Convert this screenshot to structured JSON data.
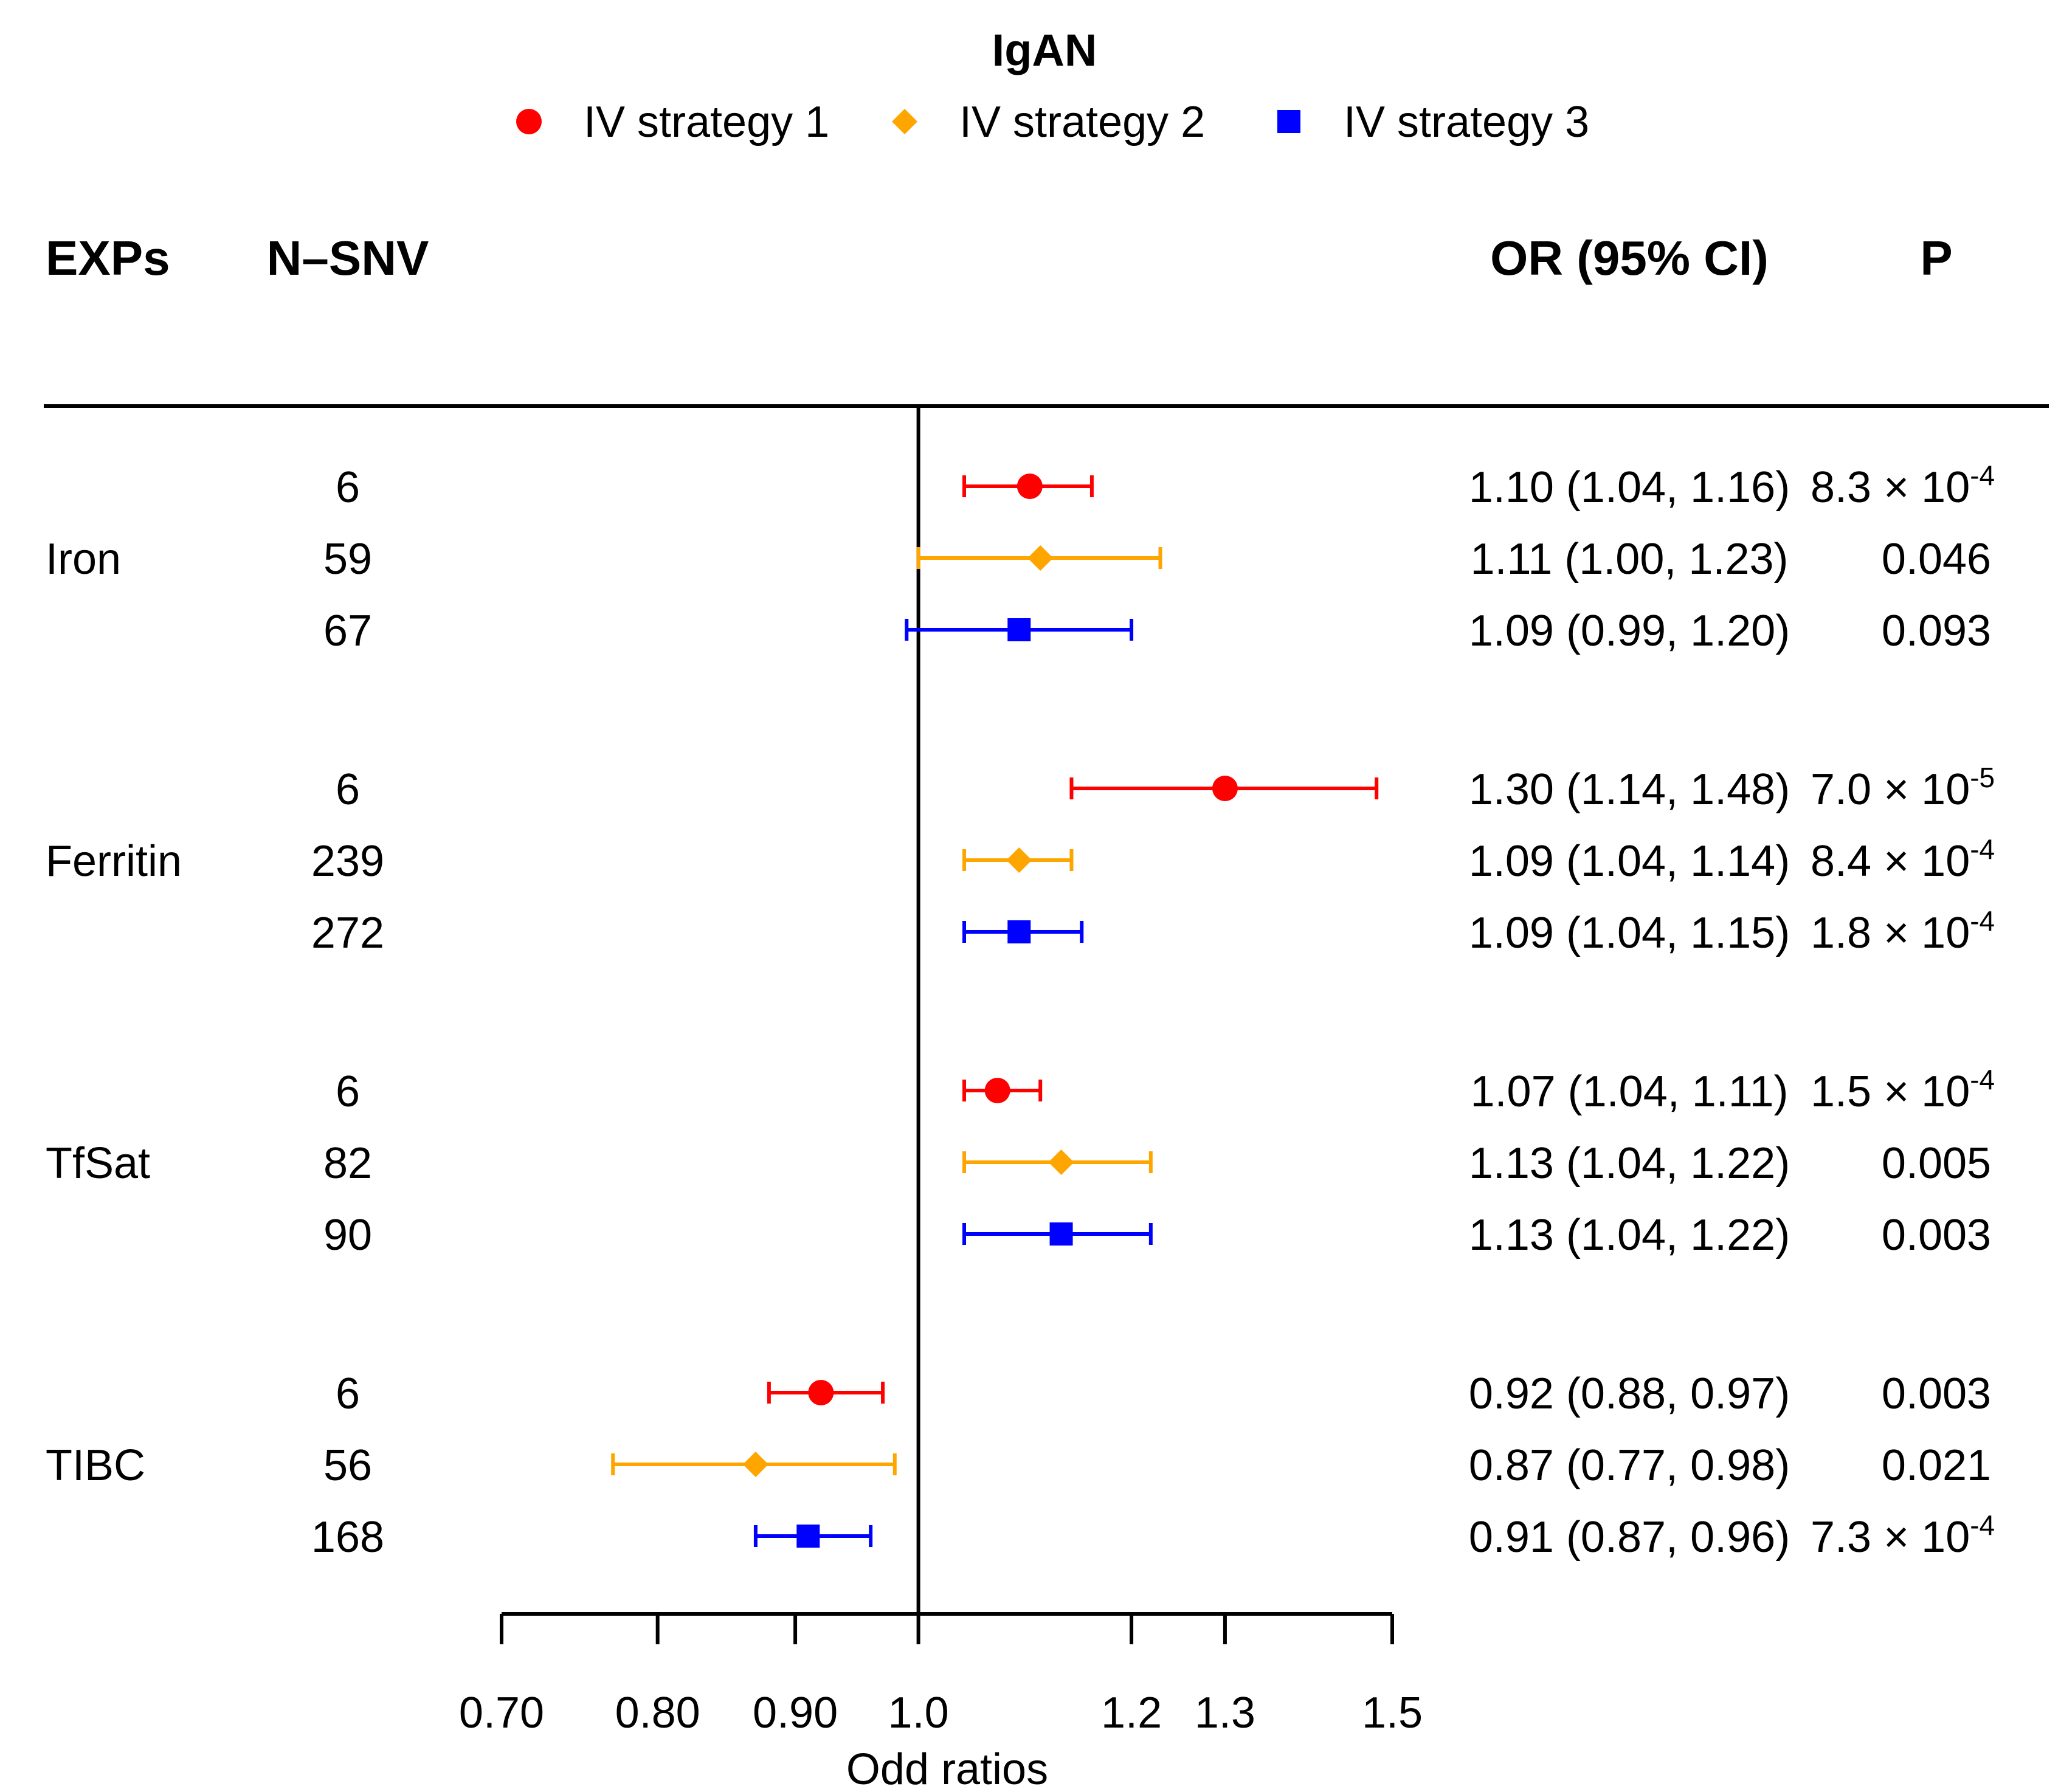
{
  "chart_data": {
    "type": "forest",
    "title": "IgAN",
    "legend": {
      "placement": "top-center",
      "entries": [
        {
          "name": "IV strategy 1",
          "color": "#ff0000",
          "marker": "circle"
        },
        {
          "name": "IV strategy 2",
          "color": "#ffa500",
          "marker": "diamond"
        },
        {
          "name": "IV strategy 3",
          "color": "#0000ff",
          "marker": "square"
        }
      ]
    },
    "headers": {
      "exposure": "EXPs",
      "n_snv": "N–SNV",
      "or_ci": "OR (95% CI)",
      "p": "P"
    },
    "xaxis": {
      "label": "Odd ratios",
      "scale": "log",
      "range": [
        0.7,
        1.5
      ],
      "reference": 1.0,
      "ticks": [
        {
          "value": 0.7,
          "label": "0.70"
        },
        {
          "value": 0.8,
          "label": "0.80"
        },
        {
          "value": 0.9,
          "label": "0.90"
        },
        {
          "value": 1.0,
          "label": "1.0"
        },
        {
          "value": 1.2,
          "label": "1.2"
        },
        {
          "value": 1.3,
          "label": "1.3"
        },
        {
          "value": 1.5,
          "label": "1.5"
        }
      ]
    },
    "groups": [
      {
        "exposure": "Iron",
        "rows": [
          {
            "strategy": 1,
            "n": "6",
            "or": 1.1,
            "lo": 1.04,
            "hi": 1.16,
            "or_text": "1.10 (1.04, 1.16)",
            "p_text": "8.3 × 10",
            "p_exp": "-4"
          },
          {
            "strategy": 2,
            "n": "59",
            "or": 1.11,
            "lo": 1.0,
            "hi": 1.23,
            "or_text": "1.11 (1.00, 1.23)",
            "p_text": "0.046",
            "p_exp": ""
          },
          {
            "strategy": 3,
            "n": "67",
            "or": 1.09,
            "lo": 0.99,
            "hi": 1.2,
            "or_text": "1.09 (0.99, 1.20)",
            "p_text": "0.093",
            "p_exp": ""
          }
        ]
      },
      {
        "exposure": "Ferritin",
        "rows": [
          {
            "strategy": 1,
            "n": "6",
            "or": 1.3,
            "lo": 1.14,
            "hi": 1.48,
            "or_text": "1.30 (1.14, 1.48)",
            "p_text": "7.0 × 10",
            "p_exp": "-5"
          },
          {
            "strategy": 2,
            "n": "239",
            "or": 1.09,
            "lo": 1.04,
            "hi": 1.14,
            "or_text": "1.09 (1.04, 1.14)",
            "p_text": "8.4 × 10",
            "p_exp": "-4"
          },
          {
            "strategy": 3,
            "n": "272",
            "or": 1.09,
            "lo": 1.04,
            "hi": 1.15,
            "or_text": "1.09 (1.04, 1.15)",
            "p_text": "1.8 × 10",
            "p_exp": "-4"
          }
        ]
      },
      {
        "exposure": "TfSat",
        "rows": [
          {
            "strategy": 1,
            "n": "6",
            "or": 1.07,
            "lo": 1.04,
            "hi": 1.11,
            "or_text": "1.07 (1.04, 1.11)",
            "p_text": "1.5 × 10",
            "p_exp": "-4"
          },
          {
            "strategy": 2,
            "n": "82",
            "or": 1.13,
            "lo": 1.04,
            "hi": 1.22,
            "or_text": "1.13 (1.04, 1.22)",
            "p_text": "0.005",
            "p_exp": ""
          },
          {
            "strategy": 3,
            "n": "90",
            "or": 1.13,
            "lo": 1.04,
            "hi": 1.22,
            "or_text": "1.13 (1.04, 1.22)",
            "p_text": "0.003",
            "p_exp": ""
          }
        ]
      },
      {
        "exposure": "TIBC",
        "rows": [
          {
            "strategy": 1,
            "n": "6",
            "or": 0.92,
            "lo": 0.88,
            "hi": 0.97,
            "or_text": "0.92 (0.88, 0.97)",
            "p_text": "0.003",
            "p_exp": ""
          },
          {
            "strategy": 2,
            "n": "56",
            "or": 0.87,
            "lo": 0.77,
            "hi": 0.98,
            "or_text": "0.87 (0.77, 0.98)",
            "p_text": "0.021",
            "p_exp": ""
          },
          {
            "strategy": 3,
            "n": "168",
            "or": 0.91,
            "lo": 0.87,
            "hi": 0.96,
            "or_text": "0.91 (0.87, 0.96)",
            "p_text": "7.3 × 10",
            "p_exp": "-4"
          }
        ]
      }
    ]
  }
}
